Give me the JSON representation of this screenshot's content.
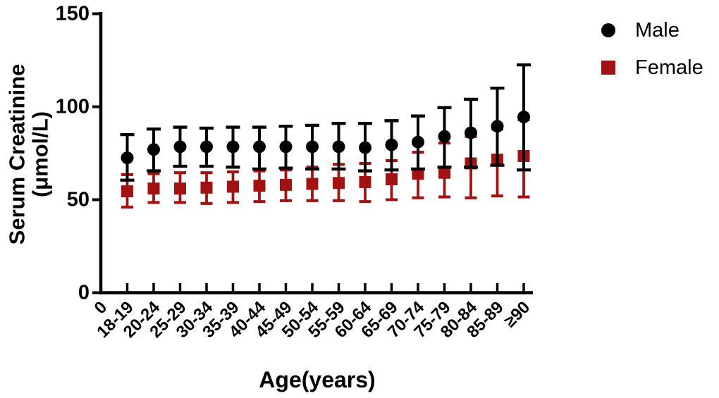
{
  "figure": {
    "background": "#ffffff"
  },
  "colors": {
    "male": "#000000",
    "female": "#A31212",
    "axis": "#000000",
    "text": "#000000"
  },
  "legend": {
    "position": "top-right",
    "items": [
      {
        "label": "Male",
        "marker": "circle-icon",
        "color": "#000000"
      },
      {
        "label": "Female",
        "marker": "square-icon",
        "color": "#A31212"
      }
    ]
  },
  "chart_data": {
    "type": "scatter",
    "title": "",
    "xlabel": "Age(years)",
    "ylabel": "Serum Creatinine (μmol/L)",
    "ylabel_lines": [
      "Serum Creatinine",
      "(μmol/L)"
    ],
    "ylim": [
      0,
      150
    ],
    "yticks": [
      0,
      50,
      100,
      150
    ],
    "ytick_labels": [
      "0",
      "50",
      "100",
      "150"
    ],
    "x_axis_tick_labels": [
      "0",
      "18-19",
      "20-24",
      "25-29",
      "30-34",
      "35-39",
      "40-44",
      "45-49",
      "50-54",
      "55-59",
      "60-64",
      "65-69",
      "70-74",
      "75-79",
      "80-84",
      "85-89",
      "≥90"
    ],
    "categories": [
      "18-19",
      "20-24",
      "25-29",
      "30-34",
      "35-39",
      "40-44",
      "45-49",
      "50-54",
      "55-59",
      "60-64",
      "65-69",
      "70-74",
      "75-79",
      "80-84",
      "85-89",
      "≥90"
    ],
    "grid": false,
    "error_bars": "asymmetric, capped, values are [lower, mean, upper] read from plot",
    "series": [
      {
        "name": "Male",
        "marker": "circle",
        "color": "#000000",
        "values": [
          72.5,
          77,
          78.5,
          78.5,
          78.5,
          78.5,
          78.5,
          78.5,
          78.5,
          78,
          79.5,
          81,
          84,
          86,
          89.5,
          94.5
        ],
        "lower": [
          60.5,
          65.5,
          68,
          68,
          67.5,
          66.5,
          67,
          66.5,
          66.5,
          65.5,
          66,
          66.5,
          67.5,
          67.5,
          68.5,
          66
        ],
        "upper": [
          85,
          88,
          89,
          88.5,
          89,
          89,
          89.5,
          90,
          91,
          91,
          92.5,
          95,
          99.5,
          104,
          110,
          122.5
        ]
      },
      {
        "name": "Female",
        "marker": "square",
        "color": "#A31212",
        "values": [
          54.5,
          56,
          56,
          56.5,
          57,
          57.5,
          58,
          58.5,
          59,
          59.5,
          61,
          64,
          64.5,
          69.5,
          71.5,
          73.5
        ],
        "lower": [
          46,
          48.5,
          48.5,
          48,
          48.5,
          49,
          49.5,
          49.5,
          49.5,
          49,
          50,
          51,
          51.5,
          51,
          52,
          51.5
        ],
        "upper": [
          63.5,
          64,
          64.5,
          64.5,
          65,
          65.5,
          66,
          67.5,
          69,
          69.5,
          71,
          75.5,
          80.5,
          84,
          88,
          93
        ]
      }
    ]
  }
}
